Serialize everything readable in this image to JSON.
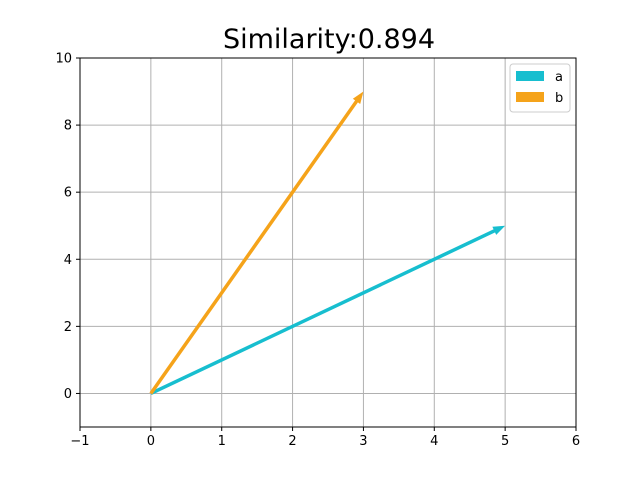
{
  "chart_data": {
    "type": "vector",
    "title": "Similarity:0.894",
    "xlim": [
      -1,
      6
    ],
    "ylim": [
      -1,
      10
    ],
    "x_ticks": [
      -1,
      0,
      1,
      2,
      3,
      4,
      5,
      6
    ],
    "y_ticks": [
      0,
      2,
      4,
      6,
      8,
      10
    ],
    "x_tick_labels": [
      "−1",
      "0",
      "1",
      "2",
      "3",
      "4",
      "5",
      "6"
    ],
    "y_tick_labels": [
      "0",
      "2",
      "4",
      "6",
      "8",
      "10"
    ],
    "grid": true,
    "legend_position": "upper right",
    "series": [
      {
        "name": "a",
        "color": "#17becf",
        "start": [
          0,
          0
        ],
        "end": [
          5,
          5
        ]
      },
      {
        "name": "b",
        "color": "#f5a31a",
        "start": [
          0,
          0
        ],
        "end": [
          3,
          9
        ]
      }
    ]
  }
}
